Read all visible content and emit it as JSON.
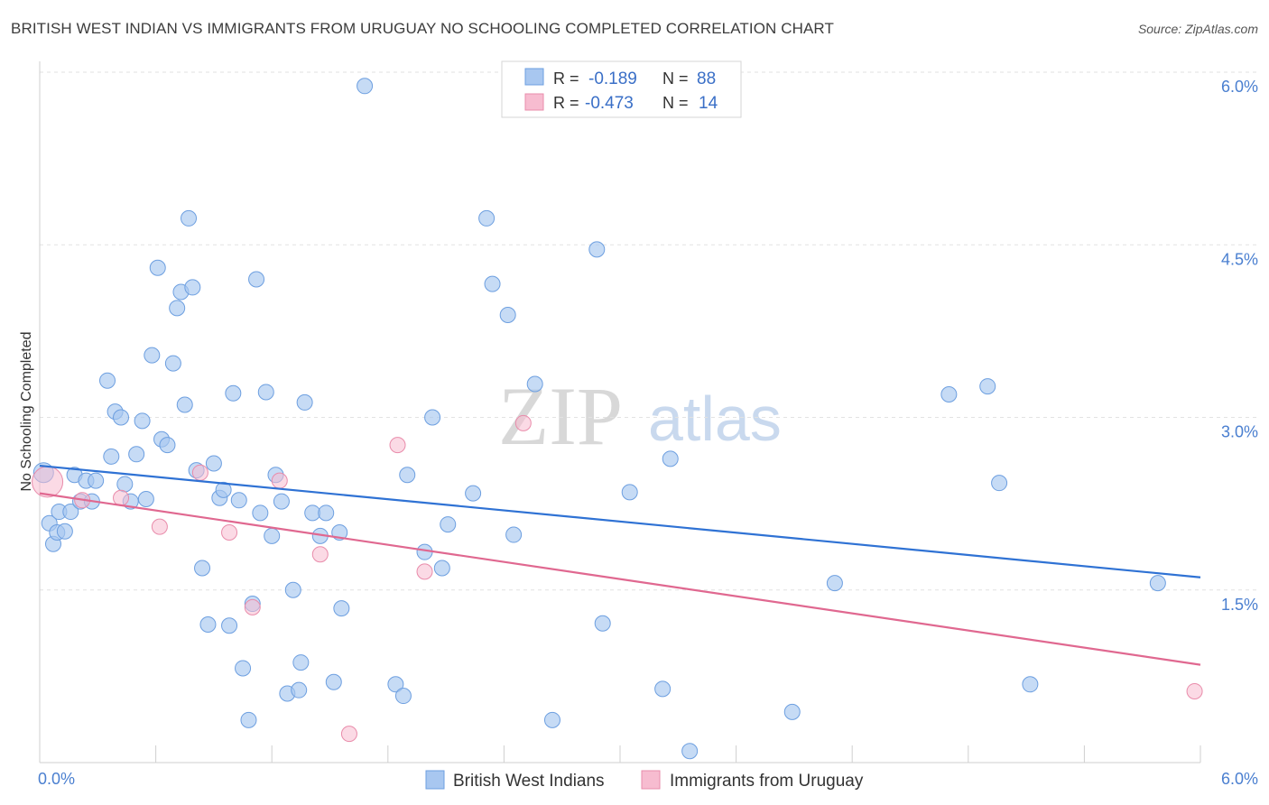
{
  "header": {
    "title": "BRITISH WEST INDIAN VS IMMIGRANTS FROM URUGUAY NO SCHOOLING COMPLETED CORRELATION CHART",
    "source": "Source: ZipAtlas.com"
  },
  "watermark": {
    "zip": "ZIP",
    "atlas": "atlas"
  },
  "chart_data": {
    "type": "scatter",
    "title": "BRITISH WEST INDIAN VS IMMIGRANTS FROM URUGUAY NO SCHOOLING COMPLETED CORRELATION CHART",
    "ylabel": "No Schooling Completed",
    "xlim": [
      0,
      6.0
    ],
    "ylim": [
      0,
      6.2
    ],
    "x_tick_labels": {
      "left": "0.0%",
      "right": "6.0%"
    },
    "y_ticks": [
      {
        "value": 1.5,
        "label": "1.5%"
      },
      {
        "value": 3.0,
        "label": "3.0%"
      },
      {
        "value": 4.5,
        "label": "4.5%"
      },
      {
        "value": 6.0,
        "label": "6.0%"
      }
    ],
    "legend": {
      "rows": [
        {
          "r_label": "R =",
          "r_value": "-0.189",
          "n_label": "N =",
          "n_value": "88"
        },
        {
          "r_label": "R =",
          "r_value": "-0.473",
          "n_label": "N =",
          "n_value": "14"
        }
      ]
    },
    "series": [
      {
        "name": "British West Indians",
        "color": "#a8c7f0",
        "stroke": "#6d9fe0",
        "line_color": "#2f72d4",
        "trend": {
          "x0": 0.0,
          "y0": 2.58,
          "x1": 6.0,
          "y1": 1.61
        },
        "points": [
          [
            0.02,
            2.52
          ],
          [
            0.05,
            2.08
          ],
          [
            0.07,
            1.9
          ],
          [
            0.09,
            2.0
          ],
          [
            0.1,
            2.18
          ],
          [
            0.13,
            2.01
          ],
          [
            0.16,
            2.18
          ],
          [
            0.18,
            2.5
          ],
          [
            0.21,
            2.27
          ],
          [
            0.24,
            2.45
          ],
          [
            0.27,
            2.27
          ],
          [
            0.29,
            2.45
          ],
          [
            0.35,
            3.32
          ],
          [
            0.37,
            2.66
          ],
          [
            0.39,
            3.05
          ],
          [
            0.42,
            3.0
          ],
          [
            0.44,
            2.42
          ],
          [
            0.47,
            2.27
          ],
          [
            0.5,
            2.68
          ],
          [
            0.53,
            2.97
          ],
          [
            0.55,
            2.29
          ],
          [
            0.58,
            3.54
          ],
          [
            0.61,
            4.3
          ],
          [
            0.63,
            2.81
          ],
          [
            0.66,
            2.76
          ],
          [
            0.69,
            3.47
          ],
          [
            0.71,
            3.95
          ],
          [
            0.73,
            4.09
          ],
          [
            0.75,
            3.11
          ],
          [
            0.77,
            4.73
          ],
          [
            0.79,
            4.13
          ],
          [
            0.81,
            2.54
          ],
          [
            0.84,
            1.69
          ],
          [
            0.87,
            1.2
          ],
          [
            0.9,
            2.6
          ],
          [
            0.93,
            2.3
          ],
          [
            0.95,
            2.37
          ],
          [
            0.98,
            1.19
          ],
          [
            1.0,
            3.21
          ],
          [
            1.03,
            2.28
          ],
          [
            1.05,
            0.82
          ],
          [
            1.08,
            0.37
          ],
          [
            1.1,
            1.38
          ],
          [
            1.12,
            4.2
          ],
          [
            1.14,
            2.17
          ],
          [
            1.17,
            3.22
          ],
          [
            1.2,
            1.97
          ],
          [
            1.22,
            2.5
          ],
          [
            1.25,
            2.27
          ],
          [
            1.28,
            0.6
          ],
          [
            1.31,
            1.5
          ],
          [
            1.34,
            0.63
          ],
          [
            1.35,
            0.87
          ],
          [
            1.37,
            3.13
          ],
          [
            1.41,
            2.17
          ],
          [
            1.45,
            1.97
          ],
          [
            1.48,
            2.17
          ],
          [
            1.52,
            0.7
          ],
          [
            1.55,
            2.0
          ],
          [
            1.56,
            1.34
          ],
          [
            1.68,
            5.88
          ],
          [
            1.84,
            0.68
          ],
          [
            1.88,
            0.58
          ],
          [
            1.9,
            2.5
          ],
          [
            1.99,
            1.83
          ],
          [
            2.03,
            3.0
          ],
          [
            2.08,
            1.69
          ],
          [
            2.11,
            2.07
          ],
          [
            2.24,
            2.34
          ],
          [
            2.31,
            4.73
          ],
          [
            2.34,
            4.16
          ],
          [
            2.42,
            3.89
          ],
          [
            2.45,
            1.98
          ],
          [
            2.56,
            3.29
          ],
          [
            2.65,
            0.37
          ],
          [
            2.88,
            4.46
          ],
          [
            2.91,
            1.21
          ],
          [
            3.05,
            2.35
          ],
          [
            3.22,
            0.64
          ],
          [
            3.26,
            2.64
          ],
          [
            3.36,
            0.1
          ],
          [
            3.89,
            0.44
          ],
          [
            4.11,
            1.56
          ],
          [
            4.7,
            3.2
          ],
          [
            4.96,
            2.43
          ],
          [
            4.9,
            3.27
          ],
          [
            5.12,
            0.68
          ],
          [
            5.78,
            1.56
          ]
        ]
      },
      {
        "name": "Immigrants from Uruguay",
        "color": "#f7bcd0",
        "stroke": "#e98cab",
        "line_color": "#e06890",
        "trend": {
          "x0": 0.0,
          "y0": 2.34,
          "x1": 6.0,
          "y1": 0.85
        },
        "points": [
          [
            0.04,
            2.44
          ],
          [
            0.22,
            2.28
          ],
          [
            0.42,
            2.3
          ],
          [
            0.62,
            2.05
          ],
          [
            0.83,
            2.52
          ],
          [
            0.98,
            2.0
          ],
          [
            1.1,
            1.35
          ],
          [
            1.24,
            2.45
          ],
          [
            1.45,
            1.81
          ],
          [
            1.6,
            0.25
          ],
          [
            1.85,
            2.76
          ],
          [
            1.99,
            1.66
          ],
          [
            2.5,
            2.95
          ],
          [
            5.97,
            0.62
          ]
        ]
      }
    ]
  }
}
